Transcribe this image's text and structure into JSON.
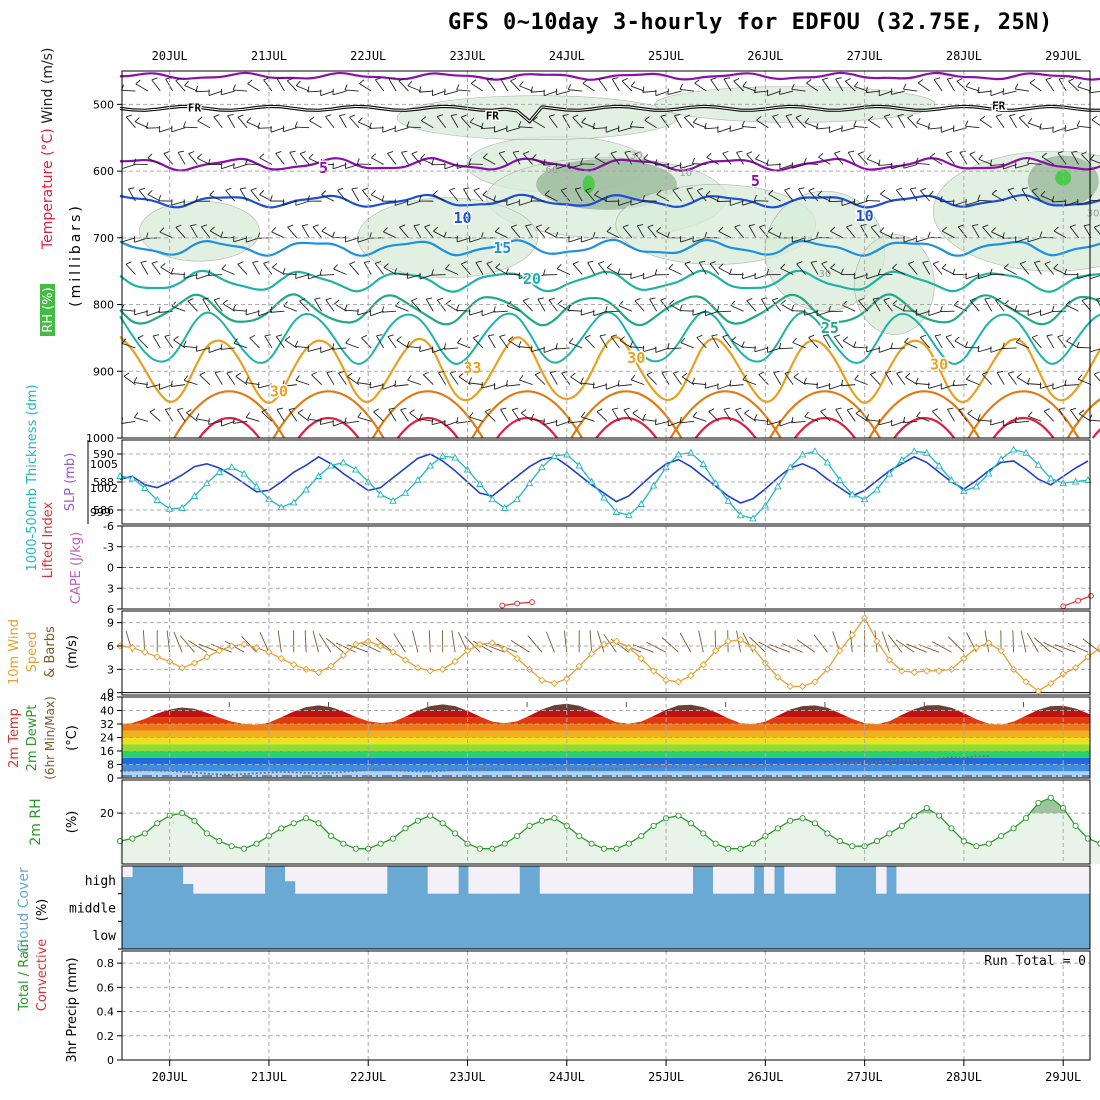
{
  "title": "GFS 0~10day 3-hourly for EDFOU (32.75E, 25N)",
  "colors": {
    "humid": "#d9ecd9",
    "humidDark": "#97b797",
    "humidGreen": "#4ec94e",
    "freeze": "#000000",
    "isoPurple": "#8b0fa8",
    "isoBlue": "#1c4ed6",
    "isoSky": "#1e90e0",
    "isoTeal": "#1fb3a8",
    "isoGreen": "#1eaa84",
    "isoOrange": "#e8a020",
    "isoDeepOrange": "#e07a10",
    "isoRed": "#e02040",
    "thickness": "#1f3fd0",
    "slp": "#20b8c0",
    "lifted": "#e03030",
    "wind": "#e8a030",
    "barb": "#7a5a2a",
    "rh": "#2a9a2a",
    "cloud": "#6aa9d4"
  },
  "chart_data": [
    {
      "panel": "upper-air",
      "type": "contour",
      "ylabel_parts": [
        "RH (%)",
        "Temperature (°C)",
        "Wind (m/s)"
      ],
      "ylabel_units": "(millibars)",
      "y_ticks": [
        "500",
        "600",
        "700",
        "800",
        "900",
        "1000"
      ],
      "ylim": [
        450,
        1000
      ],
      "isotherm_labels": [
        {
          "label": "FR",
          "x": 0.25,
          "y": 503
        },
        {
          "label": "FR",
          "x": 3.25,
          "y": 515
        },
        {
          "label": "FR",
          "x": 8.35,
          "y": 500
        },
        {
          "label": "5",
          "x": 1.55,
          "y": 595
        },
        {
          "label": "5",
          "x": 5.9,
          "y": 615
        },
        {
          "label": "10",
          "x": 2.95,
          "y": 670
        },
        {
          "label": "10",
          "x": 7.0,
          "y": 667
        },
        {
          "label": "15",
          "x": 3.35,
          "y": 715
        },
        {
          "label": "20",
          "x": 3.65,
          "y": 762
        },
        {
          "label": "25",
          "x": 6.65,
          "y": 835
        },
        {
          "label": "30",
          "x": 1.1,
          "y": 930
        },
        {
          "label": "33",
          "x": 3.05,
          "y": 895
        },
        {
          "label": "30",
          "x": 4.7,
          "y": 880
        },
        {
          "label": "30",
          "x": 7.75,
          "y": 890
        }
      ],
      "rh_labels": [
        {
          "label": "30",
          "x": 4.7,
          "y": 575
        },
        {
          "label": "60",
          "x": 3.85,
          "y": 597
        },
        {
          "label": "10",
          "x": 5.2,
          "y": 601
        },
        {
          "label": "30",
          "x": 6.6,
          "y": 753
        },
        {
          "label": "30",
          "x": 9.3,
          "y": 662
        }
      ]
    },
    {
      "panel": "thickness-slp",
      "type": "line",
      "ylabel_left": "1000-500mb Thickness (dm)",
      "ylabel_right": "SLP (mb)",
      "left_ticks": [
        "590",
        "588",
        "586"
      ],
      "left_lim": [
        585,
        591
      ],
      "right_ticks": [
        "1005",
        "1002",
        "999"
      ],
      "right_lim": [
        997.5,
        1008
      ],
      "series": [
        {
          "name": "1000-500mb Thickness",
          "axis": "left",
          "values": [
            588.2,
            588.4,
            587.8,
            587.6,
            588.0,
            588.5,
            589.1,
            589.3,
            589.0,
            588.5,
            587.9,
            587.3,
            587.4,
            588.0,
            588.7,
            589.2,
            589.8,
            589.3,
            588.6,
            588.0,
            587.4,
            587.6,
            588.3,
            589.0,
            589.7,
            590.0,
            589.5,
            588.8,
            588.0,
            587.2,
            587.0,
            587.7,
            588.4,
            589.1,
            589.6,
            589.8,
            589.2,
            588.5,
            587.8,
            587.2,
            586.6,
            587.0,
            587.8,
            588.6,
            589.3,
            589.6,
            589.1,
            588.4,
            587.7,
            587.0,
            586.5,
            586.8,
            587.5,
            588.3,
            589.0,
            589.3,
            588.9,
            588.2,
            587.6,
            587.0,
            587.4,
            588.1,
            588.8,
            589.3,
            589.8,
            589.4,
            588.7,
            588.0,
            587.5,
            588.1,
            588.8,
            589.4,
            589.5,
            588.9,
            588.2,
            587.8,
            588.4,
            589.0,
            589.5
          ]
        },
        {
          "name": "SLP",
          "axis": "right",
          "values": [
            1003.5,
            1003.2,
            1002.0,
            1000.5,
            999.4,
            999.5,
            1001.0,
            1002.6,
            1004.0,
            1004.6,
            1003.8,
            1002.2,
            1000.6,
            999.6,
            1000.2,
            1001.8,
            1003.5,
            1004.8,
            1005.2,
            1004.3,
            1002.8,
            1001.2,
            1000.4,
            1001.4,
            1003.0,
            1004.8,
            1006.0,
            1005.8,
            1004.3,
            1002.5,
            1000.6,
            999.5,
            1000.6,
            1002.6,
            1004.6,
            1006.0,
            1006.2,
            1004.8,
            1002.8,
            1000.8,
            999.0,
            998.6,
            1000.0,
            1002.3,
            1004.6,
            1006.2,
            1006.4,
            1005.0,
            1002.6,
            1000.4,
            998.6,
            998.2,
            999.8,
            1002.2,
            1004.6,
            1006.2,
            1006.6,
            1005.2,
            1003.0,
            1001.2,
            1000.6,
            1001.8,
            1003.8,
            1005.5,
            1006.6,
            1006.4,
            1004.8,
            1003.0,
            1001.6,
            1002.2,
            1003.8,
            1005.6,
            1006.8,
            1006.4,
            1004.9,
            1003.2,
            1002.6,
            1002.8,
            1003.0
          ]
        }
      ]
    },
    {
      "panel": "lifted-cape",
      "type": "line",
      "ylabel_left": "Lifted Index",
      "ylabel_right": "CAPE (J/kg)",
      "y_ticks": [
        "-6",
        "-3",
        "0",
        "3",
        "6"
      ],
      "ylim": [
        6,
        -6
      ],
      "zero_line": 0,
      "series": [
        {
          "name": "Lifted Index",
          "segments": [
            {
              "x": [
                3.35,
                3.5,
                3.65
              ],
              "y": [
                5.5,
                5.2,
                5.0
              ]
            },
            {
              "x": [
                9.0,
                9.15,
                9.28
              ],
              "y": [
                5.6,
                4.8,
                4.1
              ]
            }
          ]
        }
      ]
    },
    {
      "panel": "wind-10m",
      "type": "line",
      "ylabel_parts": [
        "10m Wind",
        "Speed",
        "& Barbs"
      ],
      "ylabel_units": "(m/s)",
      "y_ticks": [
        "9",
        "6",
        "3",
        "0"
      ],
      "ylim": [
        -0.3,
        10.5
      ],
      "series": [
        {
          "name": "10m Wind Speed",
          "values": [
            6.0,
            5.8,
            5.2,
            4.6,
            4.0,
            3.2,
            3.8,
            4.6,
            5.4,
            6.0,
            6.2,
            5.8,
            5.2,
            4.4,
            3.6,
            3.0,
            2.6,
            3.4,
            4.8,
            6.2,
            6.6,
            6.0,
            5.2,
            4.2,
            3.2,
            2.8,
            3.0,
            4.0,
            5.4,
            6.2,
            6.4,
            5.6,
            4.4,
            3.0,
            1.6,
            1.2,
            1.8,
            3.4,
            5.0,
            6.2,
            6.6,
            5.8,
            4.4,
            2.8,
            1.6,
            1.4,
            2.2,
            3.6,
            5.4,
            6.6,
            6.8,
            5.8,
            3.8,
            2.0,
            0.8,
            0.8,
            1.4,
            3.0,
            5.4,
            7.4,
            9.6,
            6.6,
            4.2,
            2.8,
            2.6,
            2.8,
            2.8,
            3.0,
            4.4,
            5.8,
            6.4,
            5.4,
            3.0,
            1.4,
            0.2,
            1.2,
            2.4,
            3.2,
            4.6,
            5.8,
            6.2,
            5.2,
            3.8,
            0.4,
            4.6,
            5.6
          ]
        }
      ]
    },
    {
      "panel": "temp-2m",
      "type": "area",
      "ylabel_parts": [
        "2m Temp",
        "2m DewPt",
        "(6hr Min/Max)"
      ],
      "ylabel_units": "(°C)",
      "y_ticks": [
        "48",
        "40",
        "32",
        "24",
        "16",
        "8",
        "0"
      ],
      "ylim": [
        0,
        48
      ],
      "series": [
        {
          "name": "2m Temp",
          "values": [
            31.8,
            32.6,
            35.0,
            38.2,
            40.6,
            41.8,
            41.0,
            38.6,
            35.8,
            33.4,
            32.0,
            31.6,
            32.8,
            36.0,
            39.4,
            42.0,
            43.0,
            42.0,
            39.4,
            36.2,
            33.6,
            32.6,
            33.2,
            36.4,
            40.0,
            42.6,
            43.6,
            42.6,
            39.8,
            36.4,
            33.4,
            32.4,
            33.6,
            37.0,
            40.6,
            43.2,
            44.0,
            42.8,
            39.8,
            36.2,
            33.0,
            32.2,
            33.4,
            36.8,
            40.4,
            43.0,
            43.4,
            42.0,
            39.0,
            35.4,
            32.4,
            31.8,
            33.4,
            37.0,
            40.6,
            42.6,
            43.0,
            41.6,
            38.4,
            35.0,
            32.4,
            31.8,
            33.6,
            37.4,
            40.8,
            43.0,
            43.2,
            41.6,
            38.4,
            34.8,
            32.2,
            31.6,
            33.4,
            37.0,
            40.4,
            42.6,
            42.8,
            41.2,
            38.2,
            34.6,
            33.8,
            35.8,
            37.6
          ]
        },
        {
          "name": "2m DewPt",
          "values": [
            4.2,
            4.4,
            4.6,
            4.4,
            4.2,
            3.6,
            3.2,
            2.6,
            2.2,
            2.0,
            2.4,
            2.8,
            3.2,
            3.6,
            3.4,
            3.0,
            2.8,
            3.0,
            3.6,
            4.2,
            4.6,
            4.8,
            4.6,
            4.2,
            3.8,
            3.8,
            4.2,
            4.6,
            5.0,
            5.4,
            5.2,
            4.8,
            4.6,
            4.6,
            5.2,
            5.8,
            6.0,
            5.8,
            5.4,
            5.2,
            5.4,
            5.8,
            6.4,
            6.8,
            6.6,
            6.2,
            6.0,
            6.4,
            7.0,
            7.4,
            7.2,
            7.0,
            7.4,
            8.0,
            8.2,
            8.0,
            7.8,
            8.2,
            8.8,
            9.2,
            9.0,
            9.4,
            10.2,
            10.8,
            10.4,
            10.6,
            11.6,
            12.2,
            12.0,
            12.8,
            13.0
          ]
        }
      ]
    },
    {
      "panel": "rh-2m",
      "type": "line",
      "ylabel_parts": [
        "2m RH"
      ],
      "ylabel_units": "(%)",
      "y_ticks": [
        "20"
      ],
      "ylim": [
        0,
        33
      ],
      "series": [
        {
          "name": "2m RH",
          "values": [
            9,
            10,
            12,
            16,
            19,
            20,
            17,
            12,
            9,
            7,
            6,
            8,
            11,
            14,
            16,
            18,
            16,
            11,
            8,
            6,
            6,
            8,
            10,
            14,
            17,
            19,
            16,
            12,
            8,
            6,
            6,
            8,
            11,
            15,
            17,
            18,
            15,
            11,
            8,
            6,
            6,
            8,
            11,
            15,
            18,
            19,
            16,
            12,
            8,
            6,
            6,
            8,
            11,
            14,
            17,
            18,
            16,
            12,
            9,
            7,
            7,
            9,
            12,
            15,
            19,
            22,
            19,
            14,
            9,
            7,
            8,
            11,
            14,
            18,
            24,
            26,
            22,
            15,
            10,
            8,
            8,
            12,
            18,
            28,
            32,
            26,
            20
          ]
        }
      ]
    },
    {
      "panel": "cloud-cover",
      "type": "area",
      "ylabel_parts": [
        "Cloud Cover"
      ],
      "ylabel_units": "(%)",
      "y_ticks": [
        "high",
        "middle",
        "low"
      ],
      "series": [
        {
          "name": "high",
          "values": [
            60,
            100,
            100,
            100,
            100,
            100,
            35,
            0,
            0,
            0,
            0,
            0,
            0,
            0,
            100,
            100,
            45,
            0,
            0,
            0,
            0,
            0,
            0,
            0,
            0,
            0,
            100,
            100,
            100,
            100,
            0,
            0,
            0,
            100,
            0,
            0,
            0,
            0,
            0,
            100,
            100,
            0,
            0,
            0,
            0,
            0,
            0,
            0,
            0,
            0,
            0,
            0,
            0,
            0,
            0,
            0,
            100,
            100,
            0,
            0,
            0,
            0,
            100,
            0,
            100,
            0,
            0,
            0,
            0,
            0,
            100,
            100,
            100,
            100,
            0,
            100,
            0,
            0,
            0,
            0,
            0,
            0,
            0,
            0,
            0,
            0,
            0,
            0,
            0,
            0,
            0,
            0,
            0,
            0,
            0
          ]
        }
      ]
    },
    {
      "panel": "precip",
      "type": "bar",
      "ylabel_parts": [
        "Total / Rain",
        "Convective"
      ],
      "ylabel_units": "3hr Precip (mm)",
      "y_ticks": [
        "0.8",
        "0.6",
        "0.4",
        "0.2",
        "0"
      ],
      "ylim": [
        0,
        0.9
      ],
      "values": [],
      "annotation": "Run Total = 0"
    }
  ],
  "x_axis": {
    "day_labels": [
      "20JUL",
      "21JUL",
      "22JUL",
      "23JUL",
      "24JUL",
      "25JUL",
      "26JUL",
      "27JUL",
      "28JUL",
      "29JUL"
    ],
    "range_days": [
      -0.48,
      9.27
    ]
  }
}
